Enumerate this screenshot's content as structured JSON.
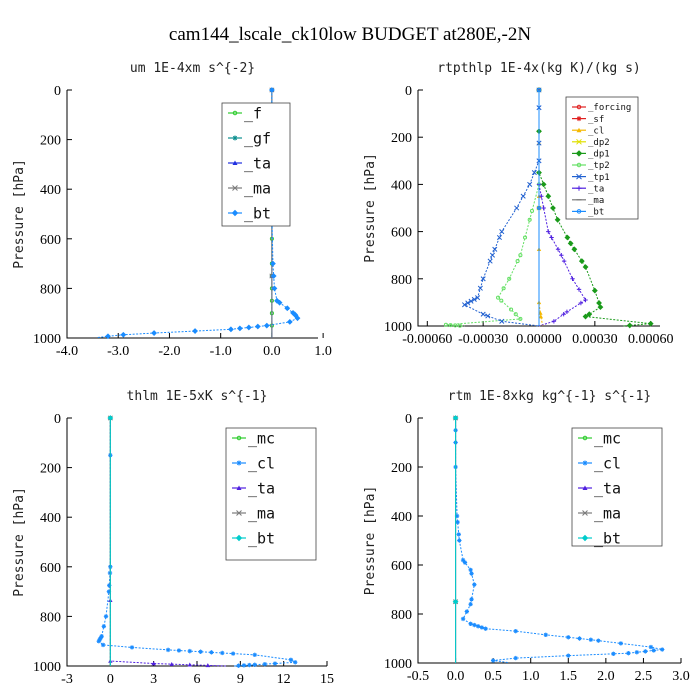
{
  "figure_title": "cam144_lscale_ck10low  BUDGET at280E,-2N",
  "chart_data": [
    {
      "type": "line",
      "title": "um  1E-4xm s^{-2}",
      "ylabel": "Pressure [hPa]",
      "xlabel": "",
      "xlim": [
        -4.0,
        0.9
      ],
      "ylim": [
        1000,
        0
      ],
      "xticks": [
        -4.0,
        -3.0,
        -2.0,
        -1.0,
        0.0,
        1.0
      ],
      "xtick_labels": [
        "-4.0",
        "-3.0",
        "-2.0",
        "-1.0",
        "0.0",
        "1.0"
      ],
      "yticks": [
        0,
        200,
        400,
        600,
        800,
        1000
      ],
      "legend_placement": "top-right",
      "legend_font": 15,
      "series": [
        {
          "name": "_f",
          "color": "#2ecc2e",
          "points": [
            [
              0,
              0
            ],
            [
              0,
              200
            ],
            [
              0,
              400
            ],
            [
              0,
              600
            ],
            [
              0,
              800
            ],
            [
              0,
              1000
            ]
          ]
        },
        {
          "name": "_gf",
          "color": "#0c8f8f",
          "points": [
            [
              0,
              0
            ],
            [
              0,
              1000
            ]
          ]
        },
        {
          "name": "_ta",
          "color": "#2030e0",
          "points": [
            [
              0,
              0
            ],
            [
              0,
              1000
            ]
          ]
        },
        {
          "name": "_ma",
          "color": "#7a7a7a",
          "points": [
            [
              0,
              0
            ],
            [
              0,
              1000
            ]
          ]
        },
        {
          "name": "_bt",
          "color": "#1a8cff",
          "points": [
            [
              0,
              0
            ],
            [
              0,
              500
            ],
            [
              0.02,
              700
            ],
            [
              0.05,
              800
            ],
            [
              0.1,
              850
            ],
            [
              0.3,
              880
            ],
            [
              0.45,
              905
            ],
            [
              0.5,
              920
            ],
            [
              0.35,
              935
            ],
            [
              -0.1,
              950
            ],
            [
              -0.8,
              965
            ],
            [
              -1.5,
              972
            ],
            [
              -2.3,
              980
            ],
            [
              -2.9,
              987
            ],
            [
              -3.2,
              993
            ],
            [
              -3.4,
              998
            ]
          ]
        }
      ]
    },
    {
      "type": "line",
      "title": "rtpthlp  1E-4x(kg K)/(kg s)",
      "ylabel": "Pressure [hPa]",
      "xlabel": "",
      "xlim": [
        -0.00065,
        0.00065
      ],
      "ylim": [
        1000,
        0
      ],
      "xticks": [
        -0.0006,
        -0.0003,
        0.0,
        0.0003,
        0.0006
      ],
      "xtick_labels": [
        "-0.00060",
        "-0.00030",
        "0.00000",
        "0.00030",
        "0.00060"
      ],
      "yticks": [
        0,
        200,
        400,
        600,
        800,
        1000
      ],
      "legend_placement": "top-right",
      "legend_font": 9,
      "series": [
        {
          "name": "_forcing",
          "color": "#e02020",
          "points": [
            [
              0,
              0
            ],
            [
              0,
              1000
            ]
          ]
        },
        {
          "name": "_sf",
          "color": "#e02020",
          "points": [
            [
              0,
              0
            ],
            [
              0,
              1000
            ]
          ]
        },
        {
          "name": "_cl",
          "color": "#f5b800",
          "points": [
            [
              0,
              0
            ],
            [
              0,
              900
            ],
            [
              1e-05,
              960
            ],
            [
              2e-05,
              1000
            ]
          ]
        },
        {
          "name": "_dp2",
          "color": "#e0e000",
          "points": [
            [
              0,
              0
            ],
            [
              0,
              1000
            ]
          ]
        },
        {
          "name": "_dp1",
          "color": "#1a9a1a",
          "points": [
            [
              0,
              0
            ],
            [
              0,
              350
            ],
            [
              5e-05,
              450
            ],
            [
              0.0001,
              550
            ],
            [
              0.00017,
              650
            ],
            [
              0.00025,
              750
            ],
            [
              0.0003,
              850
            ],
            [
              0.00033,
              920
            ],
            [
              0.00025,
              960
            ],
            [
              0.0006,
              990
            ],
            [
              0.00045,
              1000
            ]
          ]
        },
        {
          "name": "_tp2",
          "color": "#66e066",
          "points": [
            [
              0,
              0
            ],
            [
              0,
              400
            ],
            [
              -5e-05,
              550
            ],
            [
              -0.0001,
              700
            ],
            [
              -0.00016,
              800
            ],
            [
              -0.00022,
              880
            ],
            [
              -0.00015,
              930
            ],
            [
              -0.0001,
              970
            ],
            [
              -0.0005,
              995
            ],
            [
              -0.0004,
              1000
            ]
          ]
        },
        {
          "name": "_tp1",
          "color": "#2060d0",
          "points": [
            [
              0,
              0
            ],
            [
              0,
              300
            ],
            [
              -5e-05,
              400
            ],
            [
              -0.00012,
              500
            ],
            [
              -0.0002,
              600
            ],
            [
              -0.00025,
              700
            ],
            [
              -0.0003,
              800
            ],
            [
              -0.00033,
              880
            ],
            [
              -0.0004,
              910
            ],
            [
              -0.0003,
              950
            ],
            [
              -0.0002,
              980
            ],
            [
              0,
              1000
            ]
          ]
        },
        {
          "name": "_ta",
          "color": "#5020e0",
          "points": [
            [
              0,
              0
            ],
            [
              0,
              400
            ],
            [
              5e-05,
              600
            ],
            [
              0.00012,
              700
            ],
            [
              0.00018,
              800
            ],
            [
              0.00025,
              890
            ],
            [
              0.00015,
              940
            ],
            [
              8e-05,
              980
            ],
            [
              0,
              1000
            ]
          ]
        },
        {
          "name": "_ma",
          "color": "#7a7a7a",
          "points": [
            [
              0,
              0
            ],
            [
              0,
              1000
            ]
          ]
        },
        {
          "name": "_bt",
          "color": "#1a8cff",
          "points": [
            [
              0,
              0
            ],
            [
              0,
              1000
            ]
          ]
        }
      ]
    },
    {
      "type": "line",
      "title": "thlm  1E-5xK s^{-1}",
      "ylabel": "Pressure [hPa]",
      "xlabel": "",
      "xlim": [
        -3,
        15
      ],
      "ylim": [
        1000,
        0
      ],
      "xticks": [
        -3,
        0,
        3,
        6,
        9,
        12,
        15
      ],
      "xtick_labels": [
        "-3",
        "0",
        "3",
        "6",
        "9",
        "12",
        "15"
      ],
      "yticks": [
        0,
        200,
        400,
        600,
        800,
        1000
      ],
      "legend_placement": "top-right",
      "legend_font": 15,
      "series": [
        {
          "name": "_mc",
          "color": "#2ecc2e",
          "points": [
            [
              0,
              0
            ],
            [
              0,
              1000
            ]
          ]
        },
        {
          "name": "_cl",
          "color": "#1a8cff",
          "points": [
            [
              0,
              0
            ],
            [
              0,
              600
            ],
            [
              -0.1,
              700
            ],
            [
              -0.3,
              800
            ],
            [
              -0.6,
              880
            ],
            [
              -0.8,
              900
            ],
            [
              -0.5,
              915
            ],
            [
              1.5,
              925
            ],
            [
              4.0,
              935
            ],
            [
              7.0,
              945
            ],
            [
              10.0,
              955
            ],
            [
              12.5,
              975
            ],
            [
              12.8,
              985
            ],
            [
              10.0,
              995
            ],
            [
              8.5,
              1000
            ]
          ]
        },
        {
          "name": "_ta",
          "color": "#5020e0",
          "points": [
            [
              0,
              0
            ],
            [
              0,
              980
            ],
            [
              3,
              990
            ],
            [
              8,
              1000
            ]
          ]
        },
        {
          "name": "_ma",
          "color": "#7a7a7a",
          "points": [
            [
              0,
              0
            ],
            [
              0,
              1000
            ]
          ]
        },
        {
          "name": "_bt",
          "color": "#00cccc",
          "points": [
            [
              0,
              0
            ],
            [
              0,
              1000
            ]
          ]
        }
      ]
    },
    {
      "type": "line",
      "title": "rtm  1E-8xkg kg^{-1} s^{-1}",
      "ylabel": "Pressure [hPa]",
      "xlabel": "",
      "xlim": [
        -0.5,
        3.0
      ],
      "ylim": [
        1000,
        0
      ],
      "xticks": [
        -0.5,
        0.0,
        0.5,
        1.0,
        1.5,
        2.0,
        2.5,
        3.0
      ],
      "xtick_labels": [
        "-0.5",
        "0.0",
        "0.5",
        "1.0",
        "1.5",
        "2.0",
        "2.5",
        "3.0"
      ],
      "yticks": [
        0,
        200,
        400,
        600,
        800,
        1000
      ],
      "legend_placement": "top-right",
      "legend_font": 15,
      "series": [
        {
          "name": "_mc",
          "color": "#2ecc2e",
          "points": [
            [
              0,
              0
            ],
            [
              0,
              1000
            ]
          ]
        },
        {
          "name": "_cl",
          "color": "#1a8cff",
          "points": [
            [
              0,
              0
            ],
            [
              0,
              200
            ],
            [
              0.02,
              400
            ],
            [
              0.05,
              500
            ],
            [
              0.1,
              580
            ],
            [
              0.2,
              620
            ],
            [
              0.25,
              680
            ],
            [
              0.2,
              760
            ],
            [
              0.1,
              820
            ],
            [
              0.2,
              840
            ],
            [
              0.4,
              860
            ],
            [
              0.8,
              870
            ],
            [
              1.2,
              885
            ],
            [
              1.8,
              905
            ],
            [
              2.2,
              920
            ],
            [
              2.6,
              935
            ],
            [
              2.75,
              945
            ],
            [
              2.3,
              960
            ],
            [
              1.5,
              970
            ],
            [
              0.8,
              980
            ],
            [
              0.5,
              990
            ],
            [
              0.7,
              998
            ]
          ]
        },
        {
          "name": "_ta",
          "color": "#5020e0",
          "points": [
            [
              0,
              0
            ],
            [
              0,
              1000
            ]
          ]
        },
        {
          "name": "_ma",
          "color": "#7a7a7a",
          "points": [
            [
              0,
              0
            ],
            [
              0,
              1000
            ]
          ]
        },
        {
          "name": "_bt",
          "color": "#00cccc",
          "points": [
            [
              0,
              0
            ],
            [
              0,
              1000
            ]
          ]
        }
      ]
    }
  ]
}
